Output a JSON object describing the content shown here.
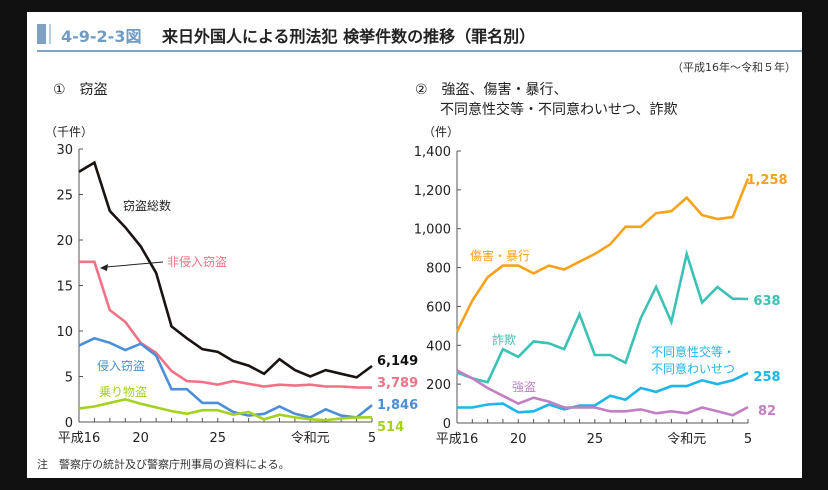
{
  "header": {
    "figure_number": "4-9-2-3図",
    "title": "来日外国人による刑法犯 検挙件数の推移（罪名別）",
    "period": "（平成16年～令和５年）",
    "accent_color": "#6f9cc4"
  },
  "note": "注　警察庁の統計及び警察庁刑事局の資料による。",
  "chart_data": [
    {
      "type": "line",
      "title": "①　窃盗",
      "ylabel": "（千件）",
      "xlabel": "",
      "ylim": [
        0,
        30
      ],
      "yticks": [
        0,
        5,
        10,
        15,
        20,
        25,
        30
      ],
      "x": [
        "H16",
        "H17",
        "H18",
        "H19",
        "H20",
        "H21",
        "H22",
        "H23",
        "H24",
        "H25",
        "H26",
        "H27",
        "H28",
        "H29",
        "H30",
        "R1",
        "R2",
        "R3",
        "R4",
        "R5"
      ],
      "xtick_labels": [
        {
          "index": 0,
          "label": "平成16"
        },
        {
          "index": 4,
          "label": "20"
        },
        {
          "index": 9,
          "label": "25"
        },
        {
          "index": 15,
          "label": "令和元"
        },
        {
          "index": 19,
          "label": "5"
        }
      ],
      "series": [
        {
          "name": "窃盗総数",
          "color": "#1a1311",
          "values": [
            27.5,
            28.5,
            23.2,
            21.4,
            19.3,
            16.4,
            10.5,
            9.2,
            8.0,
            7.7,
            6.7,
            6.2,
            5.3,
            6.9,
            5.7,
            5.0,
            5.7,
            5.3,
            4.9,
            6.149
          ],
          "end_label": "6,149"
        },
        {
          "name": "非侵入窃盗",
          "color": "#f27185",
          "values": [
            17.6,
            17.6,
            12.3,
            11.0,
            8.7,
            7.6,
            5.6,
            4.5,
            4.4,
            4.1,
            4.5,
            4.2,
            3.9,
            4.1,
            4.0,
            4.1,
            3.9,
            3.9,
            3.8,
            3.789
          ],
          "end_label": "3,789"
        },
        {
          "name": "侵入窃盗",
          "color": "#4a8fd8",
          "values": [
            8.4,
            9.2,
            8.7,
            7.9,
            8.6,
            7.3,
            3.6,
            3.6,
            2.1,
            2.1,
            1.1,
            0.7,
            0.9,
            1.7,
            0.9,
            0.5,
            1.4,
            0.7,
            0.5,
            1.846
          ],
          "end_label": "1,846"
        },
        {
          "name": "乗り物盗",
          "color": "#a4d21e",
          "values": [
            1.5,
            1.7,
            2.1,
            2.5,
            2.0,
            1.6,
            1.2,
            0.9,
            1.3,
            1.3,
            0.8,
            1.1,
            0.3,
            0.8,
            0.5,
            0.3,
            0.2,
            0.4,
            0.5,
            0.514
          ],
          "end_label": "514"
        }
      ],
      "annotations": [
        {
          "text": "窃盗総数",
          "series": "窃盗総数"
        },
        {
          "text": "非侵入窃盗",
          "series": "非侵入窃盗",
          "arrow": true
        },
        {
          "text": "侵入窃盗",
          "series": "侵入窃盗"
        },
        {
          "text": "乗り物盗",
          "series": "乗り物盗"
        }
      ]
    },
    {
      "type": "line",
      "title": "②　強盗、傷害・暴行、不同意性交等・不同意わいせつ、詐欺",
      "title_lines": [
        "②　強盗、傷害・暴行、",
        "不同意性交等・不同意わいせつ、詐欺"
      ],
      "ylabel": "（件）",
      "xlabel": "",
      "ylim": [
        0,
        1400
      ],
      "yticks": [
        0,
        200,
        400,
        600,
        800,
        1000,
        1200,
        1400
      ],
      "ytick_labels": [
        "0",
        "200",
        "400",
        "600",
        "800",
        "1,000",
        "1,200",
        "1,400"
      ],
      "x": [
        "H16",
        "H17",
        "H18",
        "H19",
        "H20",
        "H21",
        "H22",
        "H23",
        "H24",
        "H25",
        "H26",
        "H27",
        "H28",
        "H29",
        "H30",
        "R1",
        "R2",
        "R3",
        "R4",
        "R5"
      ],
      "xtick_labels": [
        {
          "index": 0,
          "label": "平成16"
        },
        {
          "index": 4,
          "label": "20"
        },
        {
          "index": 9,
          "label": "25"
        },
        {
          "index": 15,
          "label": "令和元"
        },
        {
          "index": 19,
          "label": "5"
        }
      ],
      "series": [
        {
          "name": "傷害・暴行",
          "color": "#f7a21b",
          "values": [
            470,
            630,
            750,
            810,
            810,
            770,
            810,
            790,
            830,
            870,
            920,
            1010,
            1010,
            1080,
            1090,
            1160,
            1070,
            1050,
            1060,
            1258
          ],
          "end_label": "1,258"
        },
        {
          "name": "詐欺",
          "color": "#3cc2b4",
          "values": [
            260,
            230,
            210,
            380,
            340,
            420,
            410,
            380,
            560,
            350,
            350,
            310,
            540,
            700,
            520,
            870,
            620,
            700,
            640,
            638
          ],
          "end_label": "638"
        },
        {
          "name": "不同意性交等・不同意わいせつ",
          "color": "#1cb6ea",
          "values": [
            80,
            80,
            95,
            100,
            55,
            60,
            95,
            70,
            90,
            90,
            140,
            120,
            180,
            160,
            190,
            190,
            220,
            200,
            220,
            258
          ],
          "end_label": "258"
        },
        {
          "name": "強盗",
          "color": "#c17fc4",
          "values": [
            270,
            230,
            180,
            140,
            100,
            130,
            110,
            80,
            80,
            80,
            60,
            60,
            70,
            50,
            60,
            50,
            80,
            60,
            40,
            82
          ],
          "end_label": "82"
        }
      ],
      "annotations": [
        {
          "text": "傷害・暴行",
          "series": "傷害・暴行"
        },
        {
          "text": "詐欺",
          "series": "詐欺"
        },
        {
          "text": "強盗",
          "series": "強盗"
        },
        {
          "text": "不同意性交等・\n不同意わいせつ",
          "series": "不同意性交等・不同意わいせつ"
        }
      ]
    }
  ]
}
